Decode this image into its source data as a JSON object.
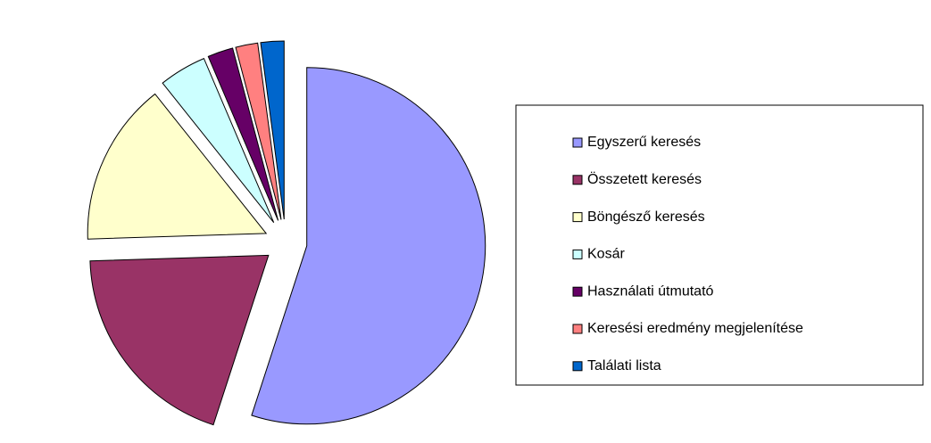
{
  "chart_data": {
    "type": "pie",
    "categories": [
      "Egyszerű keresés",
      "Összetett keresés",
      "Böngésző keresés",
      "Kosár",
      "Használati útmutató",
      "Keresési eredmény megjelenítése",
      "Találati lista"
    ],
    "values": [
      55,
      19.5,
      14.8,
      4.3,
      2.3,
      2,
      2.1
    ],
    "colors": [
      "#9999ff",
      "#993366",
      "#ffffcc",
      "#ccffff",
      "#660066",
      "#ff8080",
      "#0066cc"
    ],
    "legend": "right"
  }
}
